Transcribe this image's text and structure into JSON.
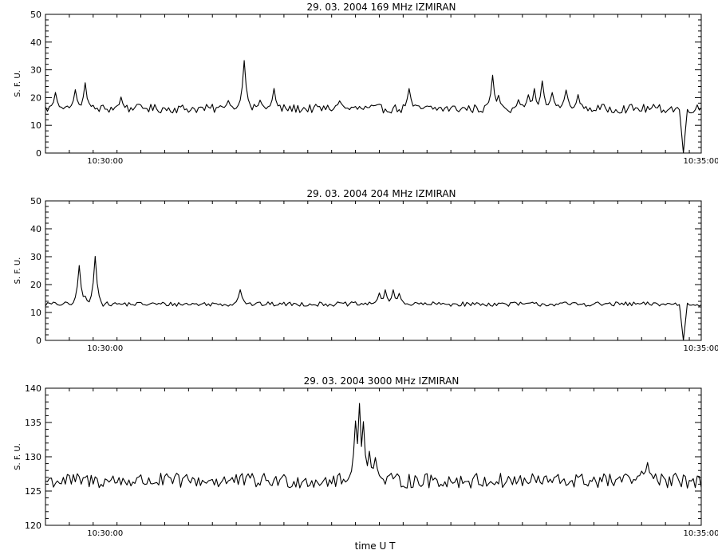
{
  "xlabel": "time  U T",
  "chart_data": [
    {
      "type": "line",
      "title": "29.  03.  2004    169 MHz    IZMIRAN",
      "ylabel": "S. F. U.",
      "ylim": [
        0,
        50
      ],
      "yticks": [
        0,
        10,
        20,
        30,
        40,
        50
      ],
      "xlim": [
        0,
        330
      ],
      "xtick_labels": [
        {
          "x": 30,
          "label": "10:30:00"
        },
        {
          "x": 330,
          "label": "10:35:00"
        }
      ],
      "baseline": 16,
      "noise": 1.6,
      "peaks": [
        [
          5,
          22
        ],
        [
          15,
          23
        ],
        [
          20,
          25
        ],
        [
          38,
          20
        ],
        [
          48,
          17
        ],
        [
          92,
          19
        ],
        [
          100,
          33
        ],
        [
          108,
          19
        ],
        [
          115,
          23
        ],
        [
          148,
          19
        ],
        [
          183,
          23
        ],
        [
          225,
          28
        ],
        [
          228,
          21
        ],
        [
          238,
          19
        ],
        [
          243,
          21
        ],
        [
          246,
          23
        ],
        [
          250,
          26
        ],
        [
          255,
          22
        ],
        [
          262,
          23
        ],
        [
          268,
          21
        ]
      ],
      "dips": [
        [
          321,
          0
        ]
      ]
    },
    {
      "type": "line",
      "title": "29.  03.  2004    204 MHz    IZMIRAN",
      "ylabel": "S. F. U.",
      "ylim": [
        0,
        50
      ],
      "yticks": [
        0,
        10,
        20,
        30,
        40,
        50
      ],
      "xlim": [
        0,
        330
      ],
      "xtick_labels": [
        {
          "x": 30,
          "label": "10:30:00"
        },
        {
          "x": 330,
          "label": "10:35:00"
        }
      ],
      "baseline": 13,
      "noise": 0.8,
      "peaks": [
        [
          17,
          27
        ],
        [
          20,
          16
        ],
        [
          25,
          30
        ],
        [
          98,
          18
        ],
        [
          168,
          17
        ],
        [
          171,
          18
        ],
        [
          175,
          18
        ],
        [
          178,
          17
        ]
      ],
      "dips": [
        [
          321,
          0
        ]
      ]
    },
    {
      "type": "line",
      "title": "29.  03.  2004    3000 MHz    IZMIRAN",
      "ylabel": "S. F. U.",
      "ylim": [
        120,
        140
      ],
      "yticks": [
        120,
        125,
        130,
        135,
        140
      ],
      "xlim": [
        0,
        330
      ],
      "xtick_labels": [
        {
          "x": 30,
          "label": "10:30:00"
        },
        {
          "x": 330,
          "label": "10:35:00"
        }
      ],
      "baseline": 126.5,
      "noise": 1.1,
      "peaks": [
        [
          156,
          135
        ],
        [
          158,
          138
        ],
        [
          160,
          135
        ],
        [
          163,
          131
        ],
        [
          166,
          130
        ],
        [
          300,
          128
        ],
        [
          303,
          129
        ]
      ],
      "dips": []
    }
  ]
}
